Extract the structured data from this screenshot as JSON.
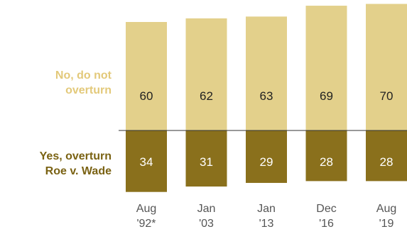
{
  "chart_data": {
    "type": "bar",
    "stacked": true,
    "categories": [
      {
        "line1": "Aug",
        "line2": "'92*"
      },
      {
        "line1": "Jan",
        "line2": "'03"
      },
      {
        "line1": "Jan",
        "line2": "'13"
      },
      {
        "line1": "Dec",
        "line2": "'16"
      },
      {
        "line1": "Aug",
        "line2": "'19"
      }
    ],
    "series": [
      {
        "name": "No, do not overturn",
        "name_lines": [
          "No, do not",
          "overturn"
        ],
        "values": [
          60,
          62,
          63,
          69,
          70
        ],
        "color": "#E3D08B",
        "label_color": "#E3C97A",
        "value_text_color": "#222222",
        "position": "above-baseline"
      },
      {
        "name": "Yes, overturn Roe v. Wade",
        "name_lines": [
          "Yes, overturn",
          "Roe v. Wade"
        ],
        "values": [
          34,
          31,
          29,
          28,
          28
        ],
        "color": "#8A701C",
        "label_color": "#7A6213",
        "value_text_color": "#ffffff",
        "position": "below-baseline"
      }
    ],
    "baseline_color": "#333333",
    "grid": false,
    "legend": "row labels on left"
  }
}
